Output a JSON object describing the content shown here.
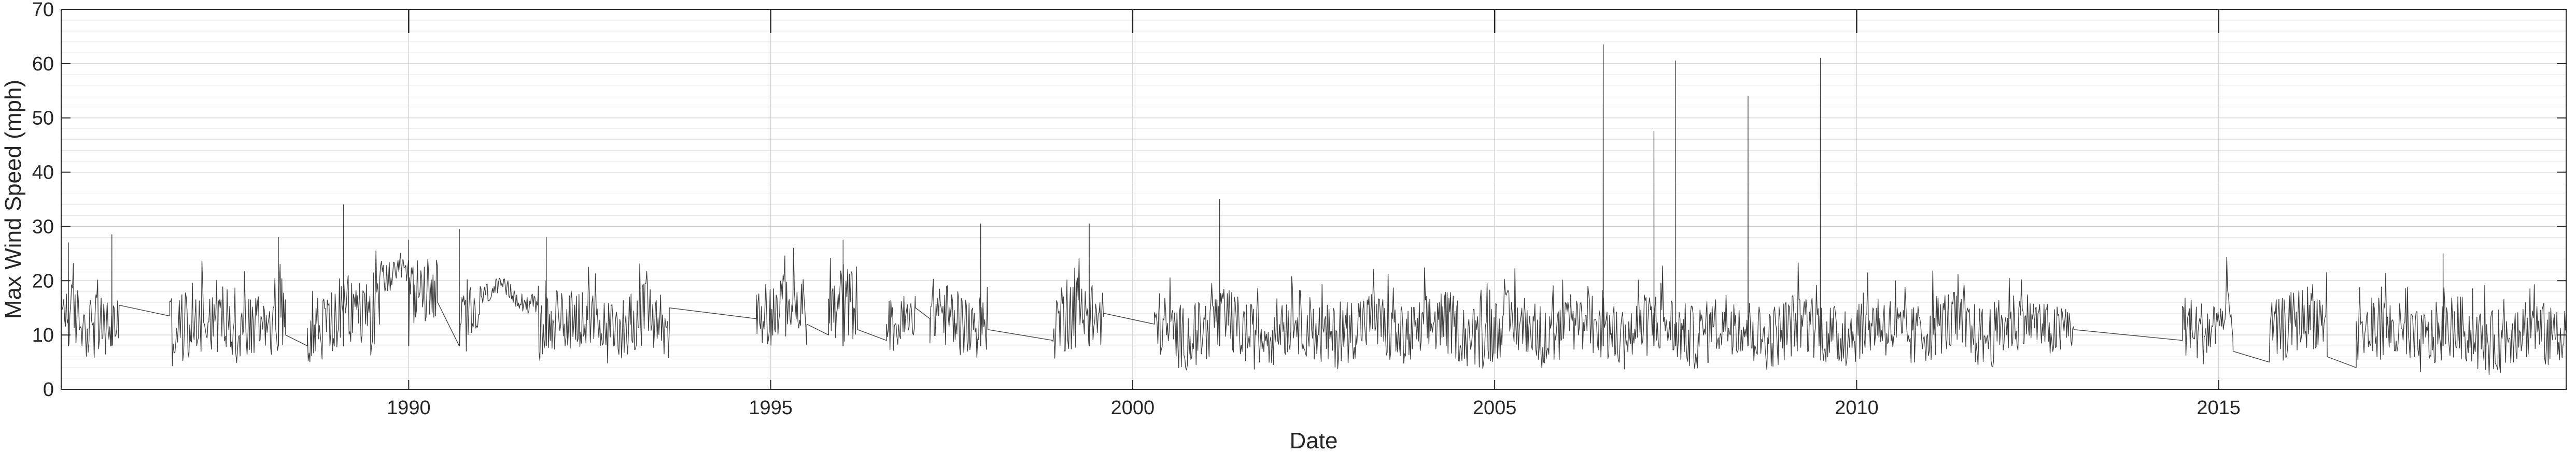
{
  "chart_data": {
    "type": "line",
    "title": "",
    "xlabel": "Date",
    "ylabel": "Max Wind Speed (mph)",
    "xlim": [
      1985.2,
      2019.8
    ],
    "ylim": [
      0,
      70
    ],
    "x_ticks": [
      "1990",
      "1995",
      "2000",
      "2005",
      "2010",
      "2015"
    ],
    "y_ticks": [
      "0",
      "10",
      "20",
      "30",
      "40",
      "50",
      "60",
      "70"
    ],
    "grid": true,
    "minor_grid": true,
    "legend": "none",
    "line_color": "#404040",
    "series": [
      {
        "values_description_omitted": true,
        "baseline_segments": [
          {
            "x": [
              1985.2,
              1986.0
            ],
            "base": 12.5,
            "amp": 6
          },
          {
            "x": [
              1986.0,
              1986.7
            ],
            "base": 14.5,
            "amp": 1
          },
          {
            "x": [
              1986.7,
              1988.3
            ],
            "base": 12.5,
            "amp": 7
          },
          {
            "x": [
              1988.3,
              1988.6
            ],
            "base": 9,
            "amp": 1
          },
          {
            "x": [
              1988.6,
              1989.6
            ],
            "base": 13,
            "amp": 7
          },
          {
            "x": [
              1989.6,
              1990.0
            ],
            "base": 22,
            "amp": 3
          },
          {
            "x": [
              1990.0,
              1990.4
            ],
            "base": 17,
            "amp": 6
          },
          {
            "x": [
              1990.4,
              1990.7
            ],
            "base": 15,
            "amp": 1
          },
          {
            "x": [
              1990.7,
              1991.0
            ],
            "base": 14,
            "amp": 6
          },
          {
            "x": [
              1991.0,
              1991.8
            ],
            "base": 17,
            "amp": 2
          },
          {
            "x": [
              1991.8,
              1993.6
            ],
            "base": 12,
            "amp": 6
          },
          {
            "x": [
              1993.6,
              1994.8
            ],
            "base": 14,
            "amp": 1
          },
          {
            "x": [
              1994.8,
              1995.5
            ],
            "base": 14,
            "amp": 6
          },
          {
            "x": [
              1995.5,
              1995.8
            ],
            "base": 11,
            "amp": 1
          },
          {
            "x": [
              1995.8,
              1996.2
            ],
            "base": 15,
            "amp": 7
          },
          {
            "x": [
              1996.2,
              1996.6
            ],
            "base": 10,
            "amp": 1
          },
          {
            "x": [
              1996.6,
              1997.0
            ],
            "base": 13,
            "amp": 5
          },
          {
            "x": [
              1997.0,
              1997.2
            ],
            "base": 14,
            "amp": 1
          },
          {
            "x": [
              1997.2,
              1998.0
            ],
            "base": 13,
            "amp": 6
          },
          {
            "x": [
              1998.0,
              1998.9
            ],
            "base": 10,
            "amp": 1
          },
          {
            "x": [
              1998.9,
              1999.6
            ],
            "base": 13,
            "amp": 7
          },
          {
            "x": [
              1999.6,
              2000.3
            ],
            "base": 13,
            "amp": 1
          },
          {
            "x": [
              2000.3,
              2012.3
            ],
            "base": 11,
            "amp": 6
          },
          {
            "x": [
              2012.3,
              2013.0
            ],
            "base": 12,
            "amp": 5
          },
          {
            "x": [
              2013.0,
              2014.5
            ],
            "base": 10,
            "amp": 1
          },
          {
            "x": [
              2014.5,
              2015.2
            ],
            "base": 12,
            "amp": 6
          },
          {
            "x": [
              2015.2,
              2015.7
            ],
            "base": 6,
            "amp": 1
          },
          {
            "x": [
              2015.7,
              2016.5
            ],
            "base": 12,
            "amp": 6
          },
          {
            "x": [
              2016.5,
              2016.9
            ],
            "base": 5,
            "amp": 1
          },
          {
            "x": [
              2016.9,
              2019.8
            ],
            "base": 10,
            "amp": 6
          }
        ],
        "peaks": [
          {
            "x": 1985.3,
            "y": 27
          },
          {
            "x": 1985.9,
            "y": 28.5
          },
          {
            "x": 1988.2,
            "y": 28
          },
          {
            "x": 1989.1,
            "y": 34
          },
          {
            "x": 1990.0,
            "y": 27.5
          },
          {
            "x": 1990.7,
            "y": 29.5
          },
          {
            "x": 1991.9,
            "y": 28
          },
          {
            "x": 1996.0,
            "y": 27.5
          },
          {
            "x": 1997.9,
            "y": 30.5
          },
          {
            "x": 1999.4,
            "y": 30.5
          },
          {
            "x": 2001.2,
            "y": 35
          },
          {
            "x": 2006.5,
            "y": 63.5
          },
          {
            "x": 2007.2,
            "y": 47.5
          },
          {
            "x": 2007.5,
            "y": 60.5
          },
          {
            "x": 2008.5,
            "y": 54
          },
          {
            "x": 2009.5,
            "y": 61
          },
          {
            "x": 2018.1,
            "y": 25
          }
        ]
      }
    ]
  }
}
